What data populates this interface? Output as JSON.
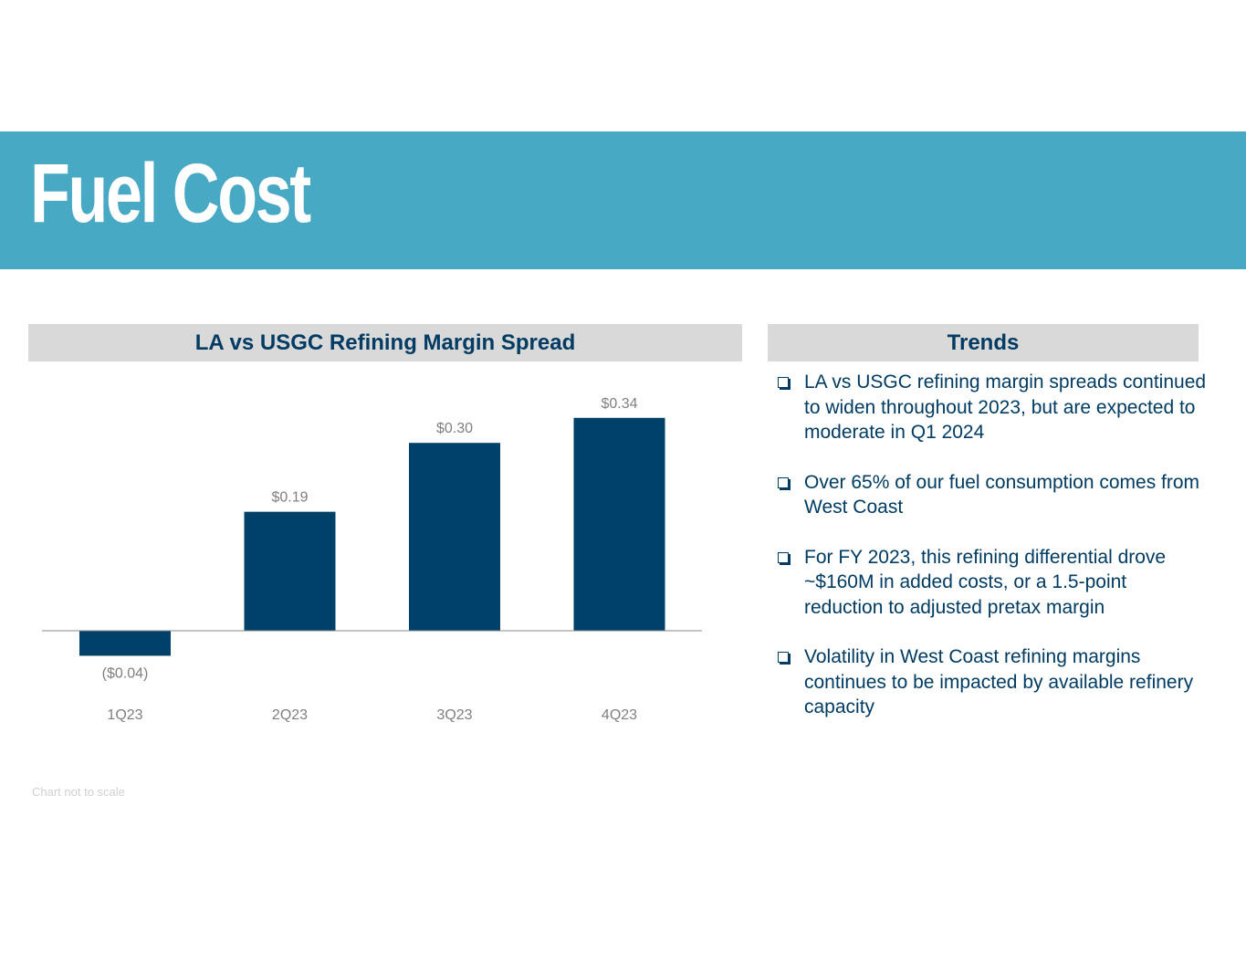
{
  "page": {
    "title": "Fuel Cost",
    "footnote": "Chart not to scale"
  },
  "colors": {
    "band": "#48a9c5",
    "bar": "#004169",
    "navy_text": "#003b63",
    "header_bg": "#d9d9d9",
    "label_gray": "#7f7f7f"
  },
  "chart_panel": {
    "header": "LA vs USGC Refining Margin Spread"
  },
  "chart_data": {
    "type": "bar",
    "title": "LA vs USGC Refining Margin Spread",
    "categories": [
      "1Q23",
      "2Q23",
      "3Q23",
      "4Q23"
    ],
    "values": [
      -0.04,
      0.19,
      0.3,
      0.34
    ],
    "data_labels": [
      "($0.04)",
      "$0.19",
      "$0.30",
      "$0.34"
    ],
    "xlabel": "",
    "ylabel": "",
    "ylim": [
      -0.06,
      0.36
    ],
    "grid": false,
    "legend": "none"
  },
  "trends_panel": {
    "header": "Trends",
    "items": [
      {
        "text": "LA vs USGC refining margin spreads continued to widen throughout 2023, but are expected to moderate in Q1 2024"
      },
      {
        "text": "Over 65% of our fuel consumption comes from West Coast"
      },
      {
        "text": "For FY 2023, this refining differential drove ~$160M in added costs, or a 1.5-point reduction to adjusted pretax margin"
      },
      {
        "text": "Volatility in West Coast refining margins continues to be impacted by available refinery capacity"
      }
    ]
  }
}
